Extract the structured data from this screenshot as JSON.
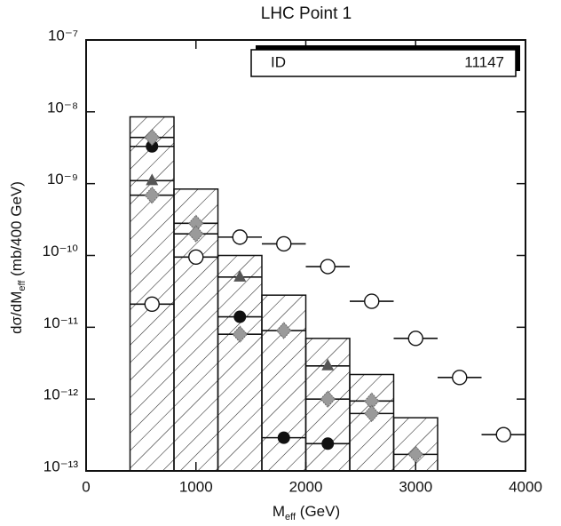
{
  "chart_data": {
    "type": "histogram",
    "title": "LHC Point 1",
    "x_label": [
      "M",
      "eff",
      " (GeV)"
    ],
    "y_label": [
      "dσ/dM",
      "eff",
      " (mb/400 GeV)"
    ],
    "stat_box": {
      "label": "ID",
      "value": 11147
    },
    "bins": [
      400,
      800,
      1200,
      1600,
      2000,
      2400,
      2800,
      3200
    ],
    "values": [
      8.5e-09,
      8.4e-10,
      1e-10,
      2.8e-11,
      7e-12,
      2.2e-12,
      5.5e-13
    ],
    "color": "#111111",
    "xlim": [
      0,
      4000
    ],
    "xticks": [
      0,
      1000,
      2000,
      3000,
      4000
    ],
    "ylim": [
      1e-13,
      1e-07
    ],
    "ylog": true,
    "yticks": [
      {
        "value": 1e-13,
        "label": "10⁻¹³"
      },
      {
        "value": 1e-12,
        "label": "10⁻¹²"
      },
      {
        "value": 1e-11,
        "label": "10⁻¹¹"
      },
      {
        "value": 1e-10,
        "label": "10⁻¹⁰"
      },
      {
        "value": 1e-09,
        "label": "10⁻⁹"
      },
      {
        "value": 1e-08,
        "label": "10⁻⁸"
      },
      {
        "value": 1e-07,
        "label": "10⁻⁷"
      }
    ],
    "series": [
      {
        "type": "scatter",
        "marker": "circle-open",
        "color": "#111111",
        "xerr": 200,
        "x": [
          600,
          1000,
          1400,
          1800,
          2200,
          2600,
          3000,
          3400,
          3800
        ],
        "values": [
          2.1e-11,
          9.5e-11,
          1.8e-10,
          1.45e-10,
          7e-11,
          2.3e-11,
          7e-12,
          2e-12,
          3.2e-13
        ]
      },
      {
        "type": "scatter",
        "marker": "circle",
        "color": "#111111",
        "xerr": 200,
        "x": [
          600,
          1400,
          1800,
          2200
        ],
        "values": [
          3.3e-09,
          1.4e-11,
          2.9e-13,
          2.4e-13
        ]
      },
      {
        "type": "scatter",
        "marker": "triangle",
        "color": "#555555",
        "xerr": 200,
        "x": [
          600,
          1400,
          2200
        ],
        "values": [
          1.1e-09,
          5e-11,
          2.9e-12
        ]
      },
      {
        "type": "scatter",
        "marker": "diamond",
        "color": "#9a9a9a",
        "xerr": 200,
        "x": [
          600,
          600,
          1000,
          1000,
          1400,
          1800,
          2200,
          2600,
          2600,
          3000
        ],
        "values": [
          4.4e-09,
          6.9e-10,
          2.8e-10,
          2e-10,
          8e-12,
          9e-12,
          1e-12,
          9.4e-13,
          6.3e-13,
          1.7e-13
        ]
      }
    ]
  }
}
